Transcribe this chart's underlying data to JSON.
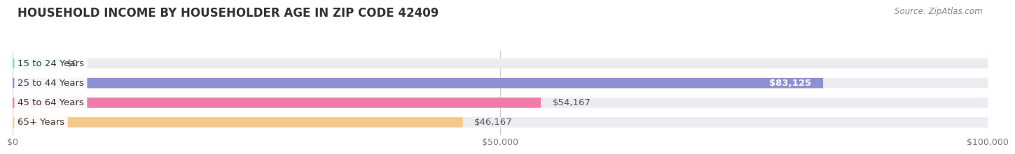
{
  "title": "HOUSEHOLD INCOME BY HOUSEHOLDER AGE IN ZIP CODE 42409",
  "source": "Source: ZipAtlas.com",
  "categories": [
    "15 to 24 Years",
    "25 to 44 Years",
    "45 to 64 Years",
    "65+ Years"
  ],
  "values": [
    0,
    83125,
    54167,
    46167
  ],
  "bar_colors": [
    "#7dd4d4",
    "#8f8fd4",
    "#f07aaa",
    "#f5c98a"
  ],
  "bar_bg_color": "#ebebf0",
  "background_color": "#ffffff",
  "xlim": [
    0,
    100000
  ],
  "xticks": [
    0,
    50000,
    100000
  ],
  "xtick_labels": [
    "$0",
    "$50,000",
    "$100,000"
  ],
  "value_labels": [
    "$0",
    "$83,125",
    "$54,167",
    "$46,167"
  ],
  "title_fontsize": 12,
  "bar_height": 0.52,
  "label_fontsize": 9.5,
  "value_fontsize": 9.5
}
